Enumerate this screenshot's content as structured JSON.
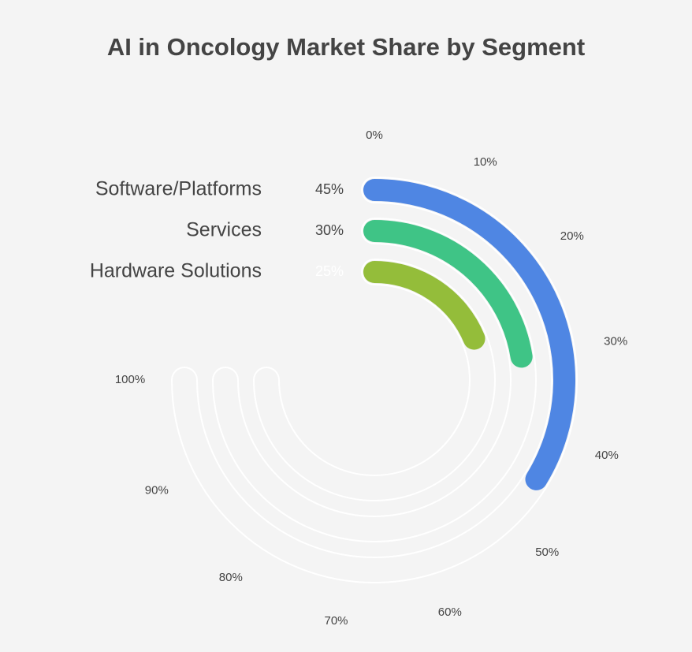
{
  "chart_data": {
    "type": "radial-bar",
    "title": "AI in Oncology Market Share by Segment",
    "categories": [
      "Software/Platforms",
      "Services",
      "Hardware Solutions"
    ],
    "values": [
      45,
      30,
      25
    ],
    "value_labels": [
      "45%",
      "30%",
      "25%"
    ],
    "colors": [
      "#4f86e3",
      "#3fc486",
      "#94bd3a"
    ],
    "value_label_colors": [
      "#444444",
      "#444444",
      "#ffffff"
    ],
    "rlim": [
      0,
      100
    ],
    "ticks": [
      {
        "value": 0,
        "label": "0%"
      },
      {
        "value": 10,
        "label": "10%"
      },
      {
        "value": 20,
        "label": "20%"
      },
      {
        "value": 30,
        "label": "30%"
      },
      {
        "value": 40,
        "label": "40%"
      },
      {
        "value": 50,
        "label": "50%"
      },
      {
        "value": 60,
        "label": "60%"
      },
      {
        "value": 70,
        "label": "70%"
      },
      {
        "value": 80,
        "label": "80%"
      },
      {
        "value": 90,
        "label": "90%"
      },
      {
        "value": 100,
        "label": "100%"
      }
    ]
  }
}
